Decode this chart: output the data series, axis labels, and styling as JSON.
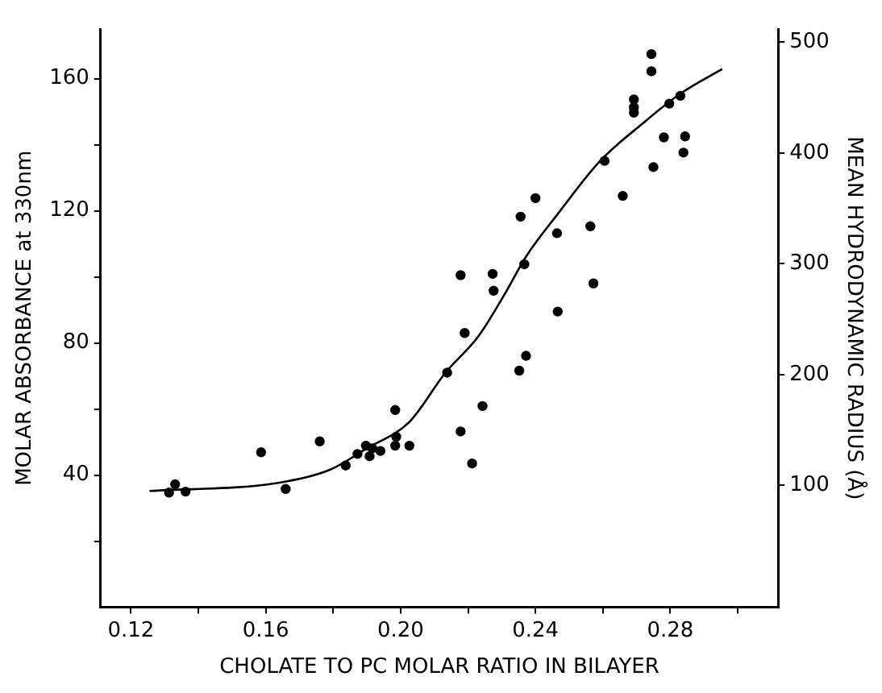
{
  "chart_data": {
    "type": "scatter",
    "xlabel": "CHOLATE TO PC MOLAR RATIO IN BILAYER",
    "ylabel": "MOLAR ABSORBANCE at 330nm",
    "y2label": "MEAN HYDRODYNAMIC RADIUS (Å)",
    "xlim": [
      0.111,
      0.312
    ],
    "xticks": [
      {
        "value": 0.12,
        "label": "0.12"
      },
      {
        "value": 0.14,
        "label": null
      },
      {
        "value": 0.16,
        "label": "0.16"
      },
      {
        "value": 0.18,
        "label": null
      },
      {
        "value": 0.2,
        "label": "0.20"
      },
      {
        "value": 0.22,
        "label": null
      },
      {
        "value": 0.24,
        "label": "0.24"
      },
      {
        "value": 0.26,
        "label": null
      },
      {
        "value": 0.28,
        "label": "0.28"
      },
      {
        "value": 0.3,
        "label": null
      }
    ],
    "ylim": [
      0,
      175
    ],
    "yticks": [
      {
        "value": 20,
        "label": null
      },
      {
        "value": 40,
        "label": "40"
      },
      {
        "value": 60,
        "label": null
      },
      {
        "value": 80,
        "label": "80"
      },
      {
        "value": 100,
        "label": null
      },
      {
        "value": 120,
        "label": "120"
      },
      {
        "value": 140,
        "label": null
      },
      {
        "value": 160,
        "label": "160"
      }
    ],
    "y2lim": [
      -10,
      512
    ],
    "y2ticks": [
      100,
      200,
      300,
      400,
      500
    ],
    "grid": false,
    "legend": false,
    "marker": "circle",
    "series": [
      {
        "color": "#000000",
        "x": [
          0.1313,
          0.1331,
          0.1362,
          0.1586,
          0.1659,
          0.176,
          0.1837,
          0.1872,
          0.1897,
          0.1908,
          0.1916,
          0.194,
          0.1984,
          0.1987,
          0.1984,
          0.2026,
          0.2138,
          0.2178,
          0.219,
          0.2178,
          0.2212,
          0.2243,
          0.2273,
          0.2276,
          0.2356,
          0.24,
          0.2367,
          0.2352,
          0.2372,
          0.2464,
          0.2466,
          0.2563,
          0.2572,
          0.2605,
          0.2659,
          0.2692,
          0.2692,
          0.2692,
          0.2744,
          0.2744,
          0.275,
          0.2781,
          0.2797,
          0.283,
          0.2844,
          0.2839
        ],
        "values": [
          34.7,
          37.2,
          35.0,
          46.9,
          35.8,
          50.2,
          42.9,
          46.4,
          48.9,
          45.7,
          48.1,
          47.3,
          59.7,
          51.6,
          48.9,
          48.9,
          71.0,
          100.5,
          83.0,
          53.2,
          43.5,
          60.9,
          100.9,
          95.8,
          118.2,
          123.8,
          103.8,
          71.6,
          76.1,
          113.2,
          89.5,
          115.3,
          98.0,
          135.1,
          124.5,
          153.7,
          151.3,
          149.7,
          167.4,
          162.2,
          133.2,
          142.2,
          152.4,
          154.8,
          142.5,
          137.6
        ]
      },
      {
        "type": "line",
        "color": "#000000",
        "marker": "none",
        "x": [
          0.1255,
          0.1633,
          0.179,
          0.19,
          0.2026,
          0.2133,
          0.223,
          0.2309,
          0.2372,
          0.2466,
          0.2592,
          0.2718,
          0.2828,
          0.2954
        ],
        "values": [
          35.2,
          37.6,
          41.6,
          48.1,
          56.1,
          71.0,
          81.9,
          94.8,
          106.1,
          119.0,
          135.1,
          146.4,
          155.3,
          162.9
        ]
      }
    ]
  }
}
